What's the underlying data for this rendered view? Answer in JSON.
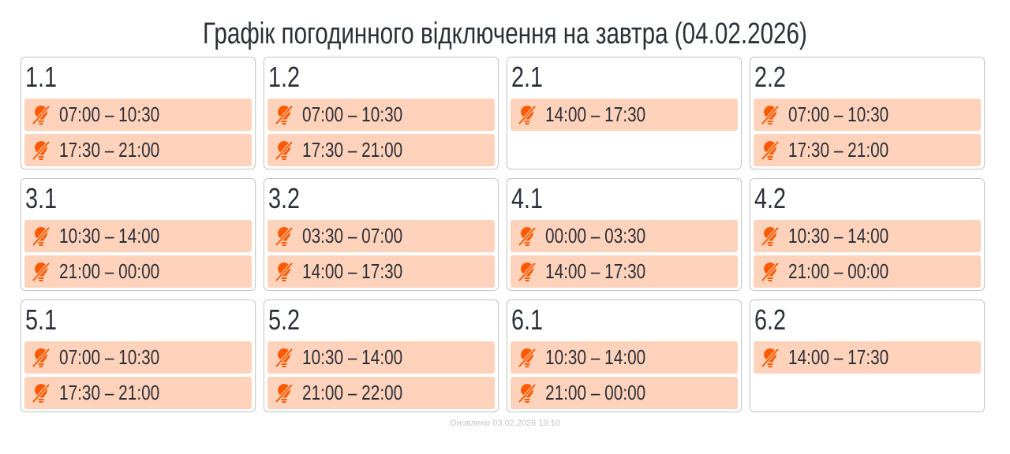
{
  "title": "Графік погодинного відключення на завтра (04.02.2026)",
  "icon": "power-off-bulb-icon",
  "accent": "#ff5a00",
  "slot_bg": "#ffd2bb",
  "groups": [
    {
      "name": "1.1",
      "slots": [
        "07:00 – 10:30",
        "17:30 – 21:00"
      ]
    },
    {
      "name": "1.2",
      "slots": [
        "07:00 – 10:30",
        "17:30 – 21:00"
      ]
    },
    {
      "name": "2.1",
      "slots": [
        "14:00 – 17:30"
      ]
    },
    {
      "name": "2.2",
      "slots": [
        "07:00 – 10:30",
        "17:30 – 21:00"
      ]
    },
    {
      "name": "3.1",
      "slots": [
        "10:30 – 14:00",
        "21:00 – 00:00"
      ]
    },
    {
      "name": "3.2",
      "slots": [
        "03:30 – 07:00",
        "14:00 – 17:30"
      ]
    },
    {
      "name": "4.1",
      "slots": [
        "00:00 – 03:30",
        "14:00 – 17:30"
      ]
    },
    {
      "name": "4.2",
      "slots": [
        "10:30 – 14:00",
        "21:00 – 00:00"
      ]
    },
    {
      "name": "5.1",
      "slots": [
        "07:00 – 10:30",
        "17:30 – 21:00"
      ]
    },
    {
      "name": "5.2",
      "slots": [
        "10:30 – 14:00",
        "21:00 – 22:00"
      ]
    },
    {
      "name": "6.1",
      "slots": [
        "10:30 – 14:00",
        "21:00 – 00:00"
      ]
    },
    {
      "name": "6.2",
      "slots": [
        "14:00 – 17:30"
      ]
    }
  ],
  "footer": "Оновлено 03.02.2026 19:10"
}
